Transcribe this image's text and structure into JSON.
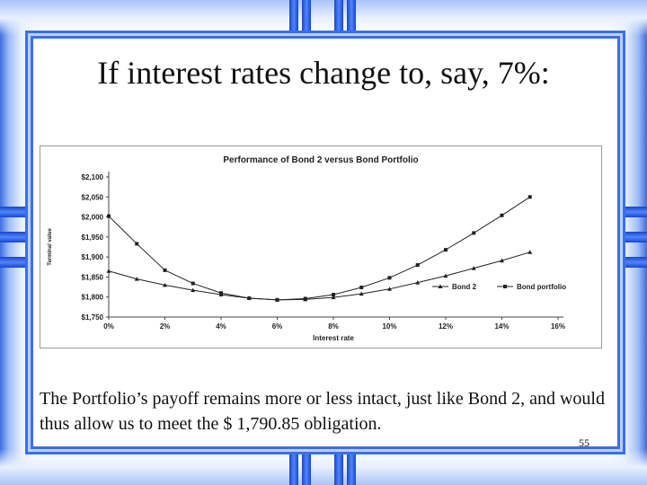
{
  "slide": {
    "title": "If interest rates change to, say, 7%:",
    "body": "The Portfolio’s payoff remains more or less intact, just like Bond 2, and would thus allow us to meet the $ 1,790.85 obligation.",
    "page_number": "55"
  },
  "colors": {
    "accent_blue": "#3b6ee8",
    "series_bond2": "#222222",
    "series_portfolio": "#222222"
  },
  "chart_data": {
    "type": "line",
    "title": "Performance of Bond 2 versus Bond Portfolio",
    "xlabel": "Interest rate",
    "ylabel": "Terminal value",
    "x": [
      0,
      2,
      4,
      6,
      8,
      10,
      12,
      14,
      16
    ],
    "x_tick_labels": [
      "0%",
      "2%",
      "4%",
      "6%",
      "8%",
      "10%",
      "12%",
      "14%",
      "16%"
    ],
    "xlim": [
      0,
      16
    ],
    "ylim": [
      1750,
      2100
    ],
    "y_ticks": [
      1750,
      1800,
      1850,
      1900,
      1950,
      2000,
      2050,
      2100
    ],
    "y_tick_labels": [
      "$1,750",
      "$1,800",
      "$1,850",
      "$1,900",
      "$1,950",
      "$2,000",
      "$2,050",
      "$2,100"
    ],
    "grid": false,
    "legend_position": "bottom-right",
    "series": [
      {
        "name": "Bond 2",
        "marker": "triangle",
        "x": [
          0,
          1,
          2,
          3,
          4,
          5,
          6,
          7,
          8,
          9,
          10,
          11,
          12,
          13,
          14,
          15
        ],
        "values": [
          1865,
          1845,
          1830,
          1817,
          1806,
          1797,
          1793,
          1794,
          1799,
          1808,
          1820,
          1836,
          1853,
          1872,
          1891,
          1912
        ]
      },
      {
        "name": "Bond portfolio",
        "marker": "square",
        "x": [
          0,
          1,
          2,
          3,
          4,
          5,
          6,
          7,
          8,
          9,
          10,
          11,
          12,
          13,
          14,
          15
        ],
        "values": [
          2002,
          1933,
          1867,
          1834,
          1810,
          1797,
          1793,
          1796,
          1806,
          1824,
          1848,
          1880,
          1918,
          1960,
          2004,
          2050
        ]
      }
    ]
  }
}
